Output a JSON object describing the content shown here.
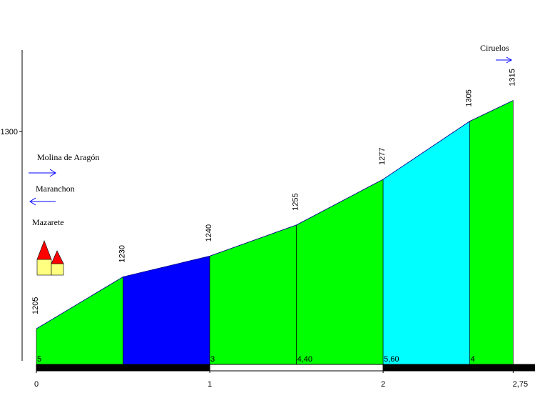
{
  "chart_data": {
    "type": "profile",
    "x": [
      0,
      0.5,
      1,
      1.5,
      2,
      2.5,
      2.75
    ],
    "values": [
      1205,
      1230,
      1240,
      1255,
      1277,
      1305,
      1315
    ],
    "segment_colors": [
      "#00ff00",
      "#0000ff",
      "#00ff00",
      "#00ff00",
      "#00ffff",
      "#00ff00"
    ],
    "gradients": [
      5,
      null,
      3,
      4.4,
      5.6,
      4
    ],
    "gradient_labels": [
      "5",
      null,
      "3",
      "4,40",
      "5,60",
      "4"
    ],
    "xlim": [
      0,
      2.876
    ],
    "xticks": [
      0,
      1,
      2,
      {
        "value": 2.75,
        "label": "2,75"
      }
    ],
    "ylim": [
      1187.8,
      1339.3
    ],
    "yticks": [
      1300
    ],
    "annotations": [
      "Molina de Aragón",
      "Maranchon",
      "Mazarete",
      "Ciruelos"
    ]
  }
}
